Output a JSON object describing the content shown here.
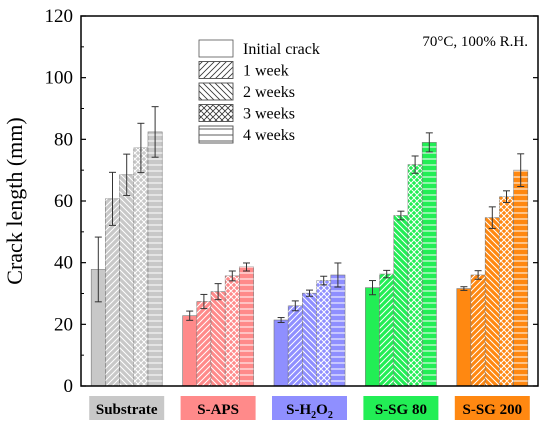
{
  "chart_data": {
    "type": "bar",
    "title": "",
    "annotation": "70°C, 100% R.H.",
    "xlabel": "",
    "ylabel": "Crack length (mm)",
    "ylim": [
      0,
      120
    ],
    "yticks": [
      0,
      20,
      40,
      60,
      80,
      100,
      120
    ],
    "grid": false,
    "legend_position": "top-center",
    "categories": [
      {
        "label": "Substrate",
        "base": "Substrate",
        "sub": "",
        "suffix": "",
        "color": "#c8c8c8"
      },
      {
        "label": "S-APS",
        "base": "S-APS",
        "sub": "",
        "suffix": "",
        "color": "#ff8a8a"
      },
      {
        "label": "S-H2O2",
        "base": "S-H",
        "sub": "2",
        "suffix": "O",
        "sub2": "2",
        "color": "#8f8fff"
      },
      {
        "label": "S-SG 80",
        "base": "S-SG 80",
        "sub": "",
        "suffix": "",
        "color": "#22ee55"
      },
      {
        "label": "S-SG 200",
        "base": "S-SG 200",
        "sub": "",
        "suffix": "",
        "color": "#ff8811"
      }
    ],
    "series": [
      {
        "name": "Initial crack",
        "pattern": "none",
        "values": [
          37.8,
          22.8,
          21.4,
          31.9,
          31.6
        ],
        "errors": [
          10.5,
          1.5,
          0.8,
          2.3,
          0.6
        ]
      },
      {
        "name": "1 week",
        "pattern": "diag-fwd",
        "values": [
          60.7,
          27.4,
          26.0,
          36.3,
          36.0
        ],
        "errors": [
          8.6,
          2.3,
          1.6,
          1.2,
          1.4
        ]
      },
      {
        "name": "2 weeks",
        "pattern": "diag-back",
        "values": [
          68.5,
          30.6,
          30.1,
          55.3,
          54.6
        ],
        "errors": [
          6.7,
          2.6,
          1.0,
          1.4,
          3.5
        ]
      },
      {
        "name": "3 weeks",
        "pattern": "cross",
        "values": [
          77.2,
          35.7,
          34.2,
          71.8,
          61.4
        ],
        "errors": [
          8.0,
          1.6,
          1.4,
          2.8,
          1.9
        ]
      },
      {
        "name": "4 weeks",
        "pattern": "horiz",
        "values": [
          82.4,
          38.6,
          36.0,
          79.0,
          70.0
        ],
        "errors": [
          8.2,
          1.3,
          3.9,
          3.1,
          5.3
        ]
      }
    ]
  }
}
